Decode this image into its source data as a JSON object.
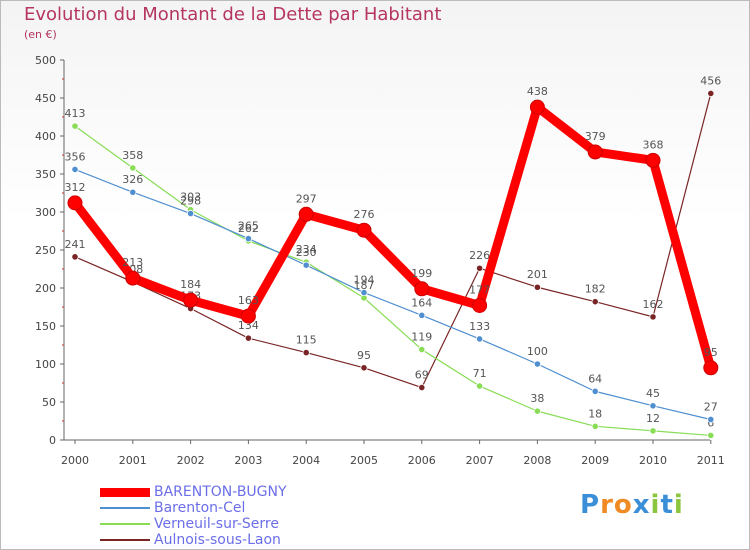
{
  "chart_data": {
    "type": "line",
    "title": "Evolution du Montant de la Dette par Habitant",
    "subtitle": "(en €)",
    "x": [
      "2000",
      "2001",
      "2002",
      "2003",
      "2004",
      "2005",
      "2006",
      "2007",
      "2008",
      "2009",
      "2010",
      "2011"
    ],
    "ylim": [
      0,
      500
    ],
    "yticks": [
      0,
      50,
      100,
      150,
      200,
      250,
      300,
      350,
      400,
      450,
      500
    ],
    "grid": false,
    "legend_position": "bottom-left",
    "series": [
      {
        "name": "BARENTON-BUGNY",
        "color": "#ff0000",
        "values": [
          312,
          213,
          184,
          163,
          297,
          276,
          199,
          177,
          438,
          379,
          368,
          95
        ]
      },
      {
        "name": "Barenton-Cel",
        "color": "#4f8fd0",
        "values": [
          356,
          326,
          298,
          265,
          230,
          194,
          164,
          133,
          100,
          64,
          45,
          27
        ]
      },
      {
        "name": "Verneuil-sur-Serre",
        "color": "#88dd55",
        "values": [
          413,
          358,
          303,
          262,
          234,
          187,
          119,
          71,
          38,
          18,
          12,
          6
        ]
      },
      {
        "name": "Aulnois-sous-Laon",
        "color": "#7a2525",
        "values": [
          241,
          208,
          173,
          134,
          115,
          95,
          69,
          226,
          201,
          182,
          162,
          456
        ]
      }
    ]
  },
  "logo": {
    "letters": [
      "P",
      "r",
      "o",
      "x",
      "i",
      "t",
      "i"
    ],
    "colors": [
      "#3b8fd8",
      "#f08a24",
      "#f08a24",
      "#3b8fd8",
      "#8cc63f",
      "#3b8fd8",
      "#8cc63f"
    ]
  }
}
